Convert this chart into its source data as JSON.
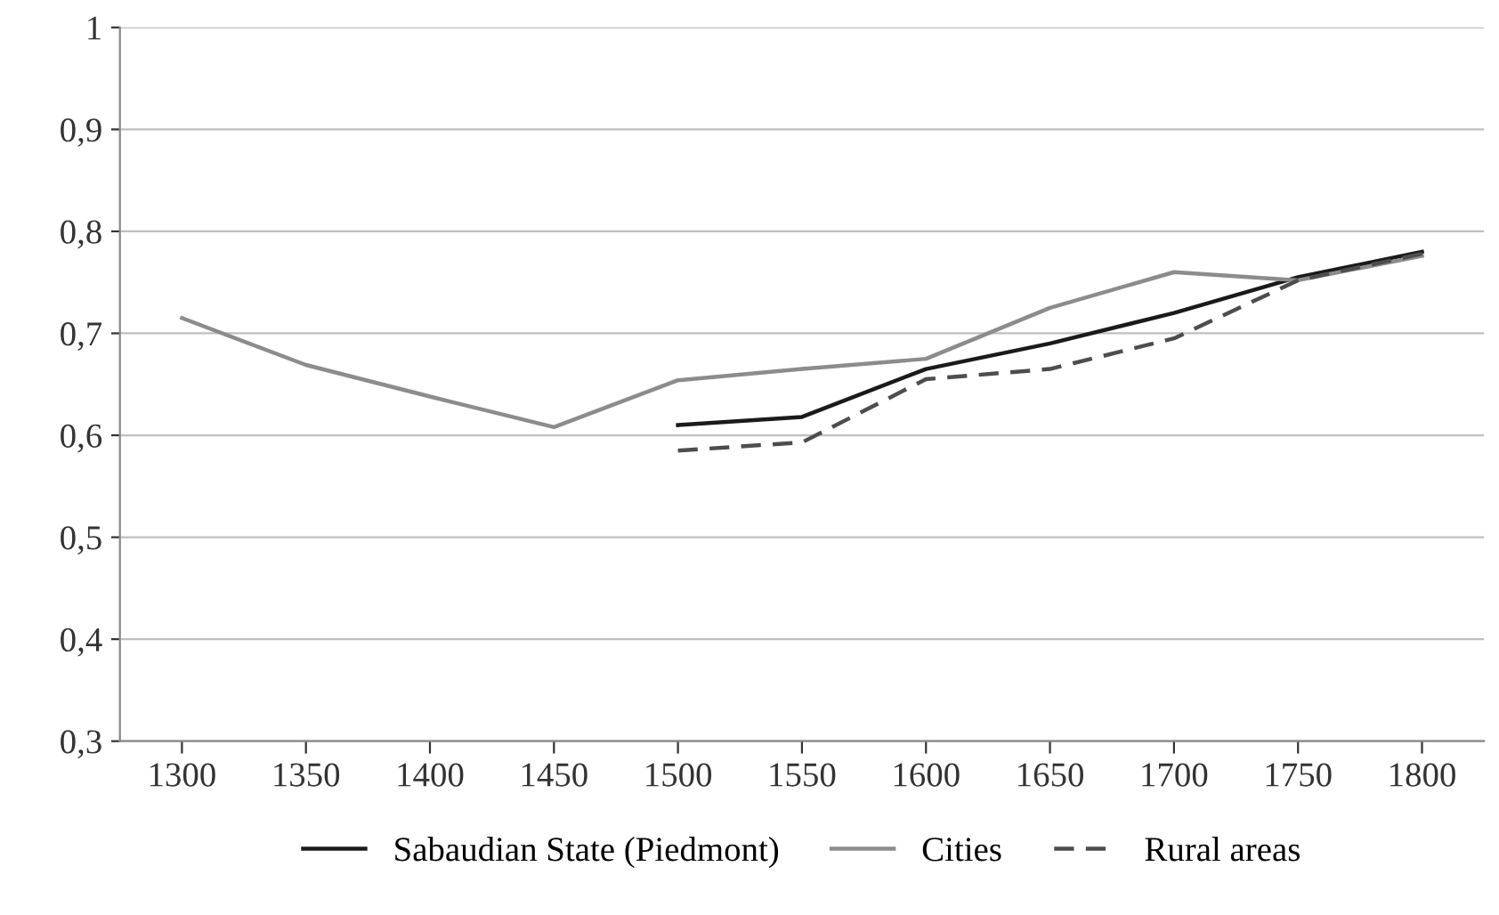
{
  "chart_data": {
    "type": "line",
    "categories": [
      "1300",
      "1350",
      "1400",
      "1450",
      "1500",
      "1550",
      "1600",
      "1650",
      "1700",
      "1750",
      "1800"
    ],
    "series": [
      {
        "name": "Sabaudian State (Piedmont)",
        "color": "#1a1a1a",
        "line_style": "solid",
        "values": [
          null,
          null,
          null,
          null,
          0.61,
          0.618,
          0.665,
          0.69,
          0.72,
          0.755,
          0.78
        ]
      },
      {
        "name": "Cities",
        "color": "#8c8c8c",
        "line_style": "solid",
        "values": [
          0.715,
          0.669,
          0.638,
          0.608,
          0.654,
          0.665,
          0.675,
          0.725,
          0.76,
          0.752,
          0.776
        ]
      },
      {
        "name": "Rural areas",
        "color": "#4d4d4d",
        "line_style": "dashed",
        "values": [
          null,
          null,
          null,
          null,
          0.585,
          0.593,
          0.655,
          0.665,
          0.695,
          0.752,
          0.778
        ]
      }
    ],
    "ylim": [
      0.3,
      1
    ],
    "yticks": [
      {
        "value": 0.3,
        "label": "0,3"
      },
      {
        "value": 0.4,
        "label": "0,4"
      },
      {
        "value": 0.5,
        "label": "0,5"
      },
      {
        "value": 0.6,
        "label": "0,6"
      },
      {
        "value": 0.7,
        "label": "0,7"
      },
      {
        "value": 0.8,
        "label": "0,8"
      },
      {
        "value": 0.9,
        "label": "0,9"
      },
      {
        "value": 1,
        "label": "1"
      }
    ],
    "grid": "y",
    "legend": "bottom",
    "marker": "none"
  }
}
